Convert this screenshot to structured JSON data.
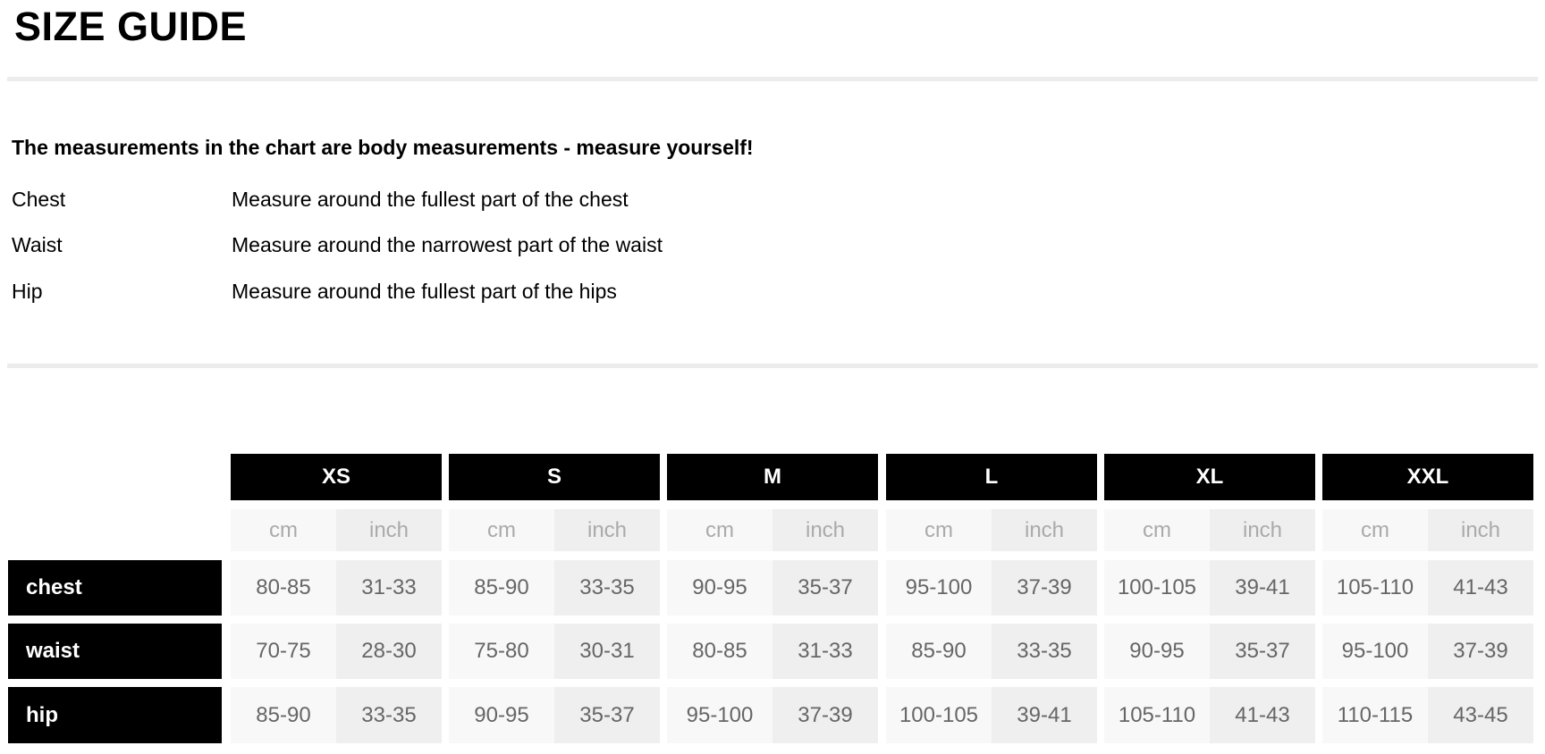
{
  "title": "SIZE GUIDE",
  "subtitle": "The measurements in the chart are body measurements - measure yourself!",
  "measurements": [
    {
      "name": "Chest",
      "description": "Measure around the fullest part of the chest"
    },
    {
      "name": "Waist",
      "description": "Measure around the narrowest part of the waist"
    },
    {
      "name": "Hip",
      "description": "Measure around the fullest part of the hips"
    }
  ],
  "table": {
    "sizes": [
      "XS",
      "S",
      "M",
      "L",
      "XL",
      "XXL"
    ],
    "units": [
      "cm",
      "inch"
    ],
    "rows": [
      {
        "label": "chest",
        "values": [
          [
            "80-85",
            "31-33"
          ],
          [
            "85-90",
            "33-35"
          ],
          [
            "90-95",
            "35-37"
          ],
          [
            "95-100",
            "37-39"
          ],
          [
            "100-105",
            "39-41"
          ],
          [
            "105-110",
            "41-43"
          ]
        ]
      },
      {
        "label": "waist",
        "values": [
          [
            "70-75",
            "28-30"
          ],
          [
            "75-80",
            "30-31"
          ],
          [
            "80-85",
            "31-33"
          ],
          [
            "85-90",
            "33-35"
          ],
          [
            "90-95",
            "35-37"
          ],
          [
            "95-100",
            "37-39"
          ]
        ]
      },
      {
        "label": "hip",
        "values": [
          [
            "85-90",
            "33-35"
          ],
          [
            "90-95",
            "35-37"
          ],
          [
            "95-100",
            "37-39"
          ],
          [
            "100-105",
            "39-41"
          ],
          [
            "105-110",
            "41-43"
          ],
          [
            "110-115",
            "43-45"
          ]
        ]
      }
    ]
  }
}
